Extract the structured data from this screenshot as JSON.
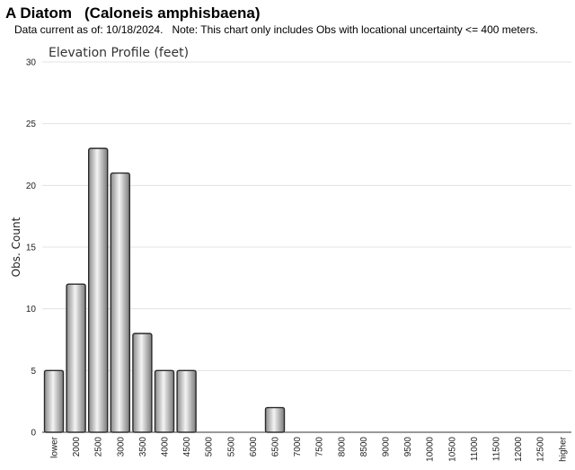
{
  "header": {
    "common_name": "A Diatom",
    "scientific_name": "(Caloneis amphisbaena)",
    "data_current": "Data current as of: 10/18/2024.",
    "note": "Note: This chart only includes Obs with locational uncertainty <= 400 meters."
  },
  "chart_data": {
    "type": "bar",
    "title": "Elevation Profile (feet)",
    "xlabel": "",
    "ylabel": "Obs. Count",
    "ylim": [
      0,
      30
    ],
    "yticks": [
      0,
      5,
      10,
      15,
      20,
      25,
      30
    ],
    "grid": true,
    "categories": [
      "lower",
      "2000",
      "2500",
      "3000",
      "3500",
      "4000",
      "4500",
      "5000",
      "5500",
      "6000",
      "6500",
      "7000",
      "7500",
      "8000",
      "8500",
      "9000",
      "9500",
      "10000",
      "10500",
      "11000",
      "11500",
      "12000",
      "12500",
      "higher"
    ],
    "values": [
      5,
      12,
      23,
      21,
      8,
      5,
      5,
      0,
      0,
      0,
      2,
      0,
      0,
      0,
      0,
      0,
      0,
      0,
      0,
      0,
      0,
      0,
      0,
      0
    ]
  }
}
